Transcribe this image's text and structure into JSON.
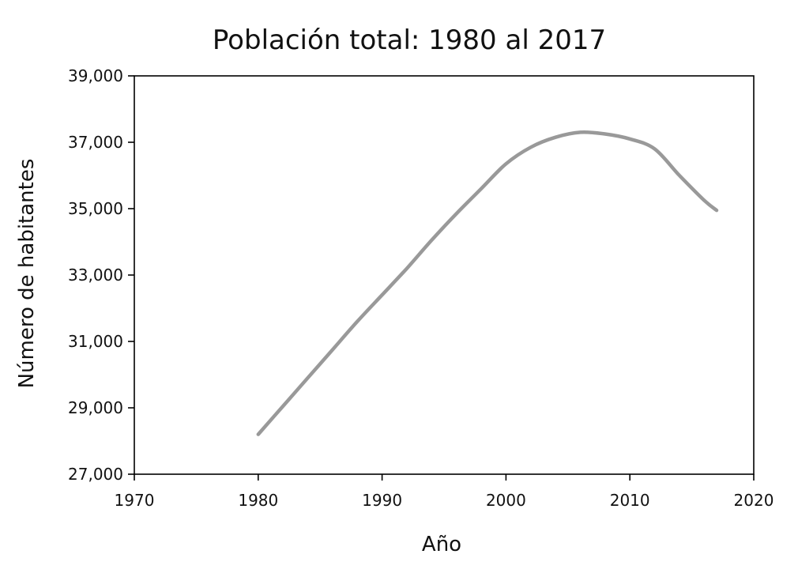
{
  "chart_data": {
    "type": "line",
    "title": "Población total: 1980 al 2017",
    "xlabel": "Año",
    "ylabel": "Número de habitantes",
    "xlim": [
      1970,
      2020
    ],
    "ylim": [
      27000,
      39000
    ],
    "x_ticks": [
      1970,
      1980,
      1990,
      2000,
      2010,
      2020
    ],
    "y_ticks": [
      27000,
      29000,
      31000,
      33000,
      35000,
      37000,
      39000
    ],
    "y_tick_labels": [
      "27,000",
      "29,000",
      "31,000",
      "33,000",
      "35,000",
      "37,000",
      "39,000"
    ],
    "grid": false,
    "legend": false,
    "series_color": "#999999",
    "series": [
      {
        "x": [
          1980,
          1982,
          1984,
          1986,
          1988,
          1990,
          1992,
          1994,
          1996,
          1998,
          2000,
          2002,
          2004,
          2006,
          2008,
          2010,
          2012,
          2014,
          2016,
          2017
        ],
        "y": [
          28200,
          29050,
          29900,
          30750,
          31600,
          32400,
          33200,
          34050,
          34850,
          35600,
          36350,
          36850,
          37150,
          37300,
          37250,
          37100,
          36800,
          36000,
          35250,
          34950
        ]
      }
    ]
  }
}
